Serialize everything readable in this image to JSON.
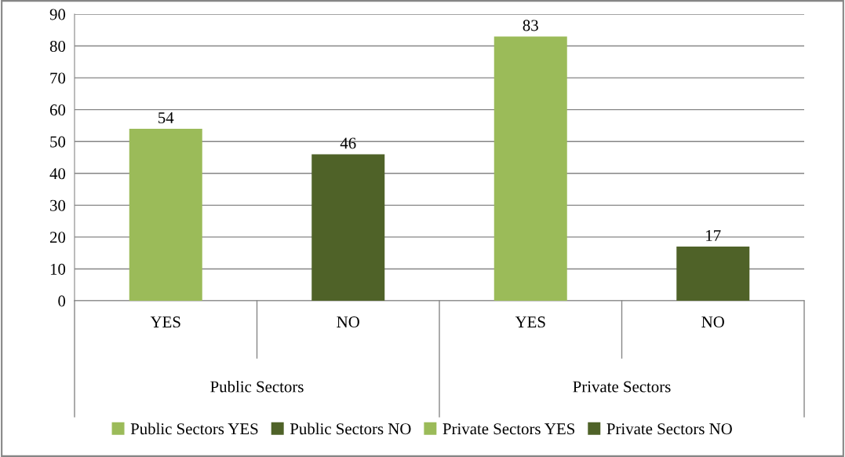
{
  "chart_data": {
    "type": "bar",
    "categories": [
      "YES",
      "NO",
      "YES",
      "NO"
    ],
    "series": [
      {
        "name": "Public Sectors YES",
        "color": "#9bbb59",
        "values": [
          54,
          null,
          null,
          null
        ]
      },
      {
        "name": "Public Sectors NO",
        "color": "#4f6228",
        "values": [
          null,
          46,
          null,
          null
        ]
      },
      {
        "name": "Private Sectors YES",
        "color": "#9bbb59",
        "values": [
          null,
          null,
          83,
          null
        ]
      },
      {
        "name": "Private Sectors NO",
        "color": "#4f6228",
        "values": [
          null,
          null,
          null,
          17
        ]
      }
    ],
    "annotations": [
      "Public Sectors",
      "Private Sectors"
    ],
    "ylim": [
      0,
      90
    ],
    "yticks": [
      0,
      10,
      20,
      30,
      40,
      50,
      60,
      70,
      80,
      90
    ],
    "grid": "y",
    "legend": "bottom",
    "data_labels": true
  }
}
